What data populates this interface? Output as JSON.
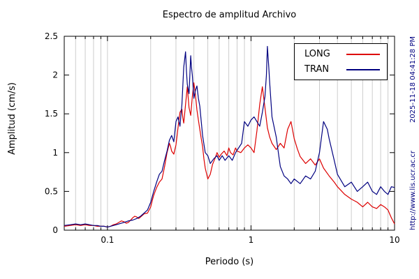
{
  "chart_data": {
    "type": "line",
    "title": "Espectro de amplitud Archivo",
    "xlabel": "Periodo (s)",
    "ylabel": "Amplitud (cm/s)",
    "xscale": "log",
    "xlim": [
      0.05,
      10
    ],
    "ylim": [
      0,
      2.5
    ],
    "x_major_ticks": [
      0.1,
      1,
      10
    ],
    "x_tick_labels": [
      "0.1",
      "1",
      "10"
    ],
    "y_ticks": [
      0,
      0.5,
      1,
      1.5,
      2,
      2.5
    ],
    "y_tick_labels": [
      "0",
      "0.5",
      "1",
      "1.5",
      "2",
      "2.5"
    ],
    "grid": true,
    "legend_position": "top-right",
    "grid_color": "#cccccc",
    "axis_color": "#000000",
    "series": [
      {
        "name": "LONG",
        "color": "#dd0000",
        "points": [
          [
            0.05,
            0.05
          ],
          [
            0.055,
            0.06
          ],
          [
            0.06,
            0.07
          ],
          [
            0.065,
            0.06
          ],
          [
            0.07,
            0.07
          ],
          [
            0.075,
            0.06
          ],
          [
            0.08,
            0.06
          ],
          [
            0.085,
            0.05
          ],
          [
            0.09,
            0.05
          ],
          [
            0.095,
            0.05
          ],
          [
            0.1,
            0.04
          ],
          [
            0.105,
            0.05
          ],
          [
            0.11,
            0.07
          ],
          [
            0.115,
            0.08
          ],
          [
            0.12,
            0.1
          ],
          [
            0.125,
            0.12
          ],
          [
            0.13,
            0.11
          ],
          [
            0.135,
            0.09
          ],
          [
            0.14,
            0.1
          ],
          [
            0.145,
            0.13
          ],
          [
            0.15,
            0.16
          ],
          [
            0.155,
            0.18
          ],
          [
            0.16,
            0.17
          ],
          [
            0.165,
            0.15
          ],
          [
            0.17,
            0.17
          ],
          [
            0.175,
            0.19
          ],
          [
            0.18,
            0.21
          ],
          [
            0.19,
            0.22
          ],
          [
            0.2,
            0.3
          ],
          [
            0.205,
            0.38
          ],
          [
            0.21,
            0.45
          ],
          [
            0.215,
            0.5
          ],
          [
            0.22,
            0.55
          ],
          [
            0.23,
            0.62
          ],
          [
            0.24,
            0.66
          ],
          [
            0.25,
            0.82
          ],
          [
            0.26,
            1.0
          ],
          [
            0.27,
            1.12
          ],
          [
            0.275,
            1.08
          ],
          [
            0.28,
            1.02
          ],
          [
            0.29,
            0.98
          ],
          [
            0.3,
            1.1
          ],
          [
            0.31,
            1.32
          ],
          [
            0.32,
            1.52
          ],
          [
            0.33,
            1.56
          ],
          [
            0.335,
            1.45
          ],
          [
            0.34,
            1.38
          ],
          [
            0.35,
            1.62
          ],
          [
            0.36,
            1.85
          ],
          [
            0.37,
            1.58
          ],
          [
            0.38,
            1.48
          ],
          [
            0.39,
            1.72
          ],
          [
            0.4,
            1.9
          ],
          [
            0.41,
            1.75
          ],
          [
            0.42,
            1.55
          ],
          [
            0.43,
            1.42
          ],
          [
            0.44,
            1.3
          ],
          [
            0.45,
            1.18
          ],
          [
            0.46,
            1.08
          ],
          [
            0.47,
            0.92
          ],
          [
            0.48,
            0.8
          ],
          [
            0.5,
            0.66
          ],
          [
            0.52,
            0.72
          ],
          [
            0.54,
            0.85
          ],
          [
            0.56,
            0.92
          ],
          [
            0.58,
            1.0
          ],
          [
            0.6,
            0.94
          ],
          [
            0.62,
            0.98
          ],
          [
            0.65,
            1.02
          ],
          [
            0.68,
            0.96
          ],
          [
            0.7,
            1.06
          ],
          [
            0.72,
            1.0
          ],
          [
            0.75,
            0.97
          ],
          [
            0.78,
            1.06
          ],
          [
            0.8,
            1.02
          ],
          [
            0.85,
            1.0
          ],
          [
            0.9,
            1.06
          ],
          [
            0.95,
            1.1
          ],
          [
            1.0,
            1.06
          ],
          [
            1.05,
            1.0
          ],
          [
            1.1,
            1.28
          ],
          [
            1.15,
            1.62
          ],
          [
            1.2,
            1.85
          ],
          [
            1.25,
            1.58
          ],
          [
            1.3,
            1.32
          ],
          [
            1.35,
            1.2
          ],
          [
            1.4,
            1.12
          ],
          [
            1.5,
            1.04
          ],
          [
            1.6,
            1.12
          ],
          [
            1.7,
            1.06
          ],
          [
            1.8,
            1.3
          ],
          [
            1.9,
            1.4
          ],
          [
            2.0,
            1.18
          ],
          [
            2.1,
            1.05
          ],
          [
            2.2,
            0.95
          ],
          [
            2.4,
            0.86
          ],
          [
            2.6,
            0.92
          ],
          [
            2.8,
            0.84
          ],
          [
            3.0,
            0.92
          ],
          [
            3.2,
            0.8
          ],
          [
            3.5,
            0.7
          ],
          [
            3.8,
            0.62
          ],
          [
            4.0,
            0.56
          ],
          [
            4.5,
            0.46
          ],
          [
            5.0,
            0.4
          ],
          [
            5.5,
            0.36
          ],
          [
            6.0,
            0.3
          ],
          [
            6.5,
            0.36
          ],
          [
            7.0,
            0.3
          ],
          [
            7.5,
            0.28
          ],
          [
            8.0,
            0.33
          ],
          [
            8.5,
            0.3
          ],
          [
            9.0,
            0.26
          ],
          [
            9.5,
            0.16
          ],
          [
            10,
            0.08
          ]
        ]
      },
      {
        "name": "TRAN",
        "color": "#000080",
        "points": [
          [
            0.05,
            0.06
          ],
          [
            0.055,
            0.07
          ],
          [
            0.06,
            0.08
          ],
          [
            0.065,
            0.07
          ],
          [
            0.07,
            0.08
          ],
          [
            0.075,
            0.07
          ],
          [
            0.08,
            0.06
          ],
          [
            0.085,
            0.06
          ],
          [
            0.09,
            0.05
          ],
          [
            0.095,
            0.05
          ],
          [
            0.1,
            0.04
          ],
          [
            0.105,
            0.05
          ],
          [
            0.11,
            0.06
          ],
          [
            0.115,
            0.07
          ],
          [
            0.12,
            0.08
          ],
          [
            0.13,
            0.1
          ],
          [
            0.14,
            0.12
          ],
          [
            0.15,
            0.13
          ],
          [
            0.16,
            0.15
          ],
          [
            0.17,
            0.18
          ],
          [
            0.18,
            0.22
          ],
          [
            0.19,
            0.26
          ],
          [
            0.2,
            0.36
          ],
          [
            0.21,
            0.5
          ],
          [
            0.22,
            0.62
          ],
          [
            0.23,
            0.72
          ],
          [
            0.24,
            0.76
          ],
          [
            0.25,
            0.9
          ],
          [
            0.26,
            1.02
          ],
          [
            0.27,
            1.16
          ],
          [
            0.28,
            1.22
          ],
          [
            0.29,
            1.14
          ],
          [
            0.3,
            1.4
          ],
          [
            0.31,
            1.46
          ],
          [
            0.32,
            1.34
          ],
          [
            0.33,
            1.62
          ],
          [
            0.34,
            2.1
          ],
          [
            0.35,
            2.3
          ],
          [
            0.355,
            2.05
          ],
          [
            0.36,
            1.88
          ],
          [
            0.37,
            1.76
          ],
          [
            0.38,
            2.25
          ],
          [
            0.385,
            2.1
          ],
          [
            0.39,
            2.0
          ],
          [
            0.4,
            1.7
          ],
          [
            0.41,
            1.8
          ],
          [
            0.42,
            1.86
          ],
          [
            0.43,
            1.7
          ],
          [
            0.44,
            1.6
          ],
          [
            0.45,
            1.4
          ],
          [
            0.46,
            1.22
          ],
          [
            0.48,
            1.0
          ],
          [
            0.5,
            0.96
          ],
          [
            0.52,
            0.86
          ],
          [
            0.55,
            0.92
          ],
          [
            0.58,
            0.96
          ],
          [
            0.6,
            0.9
          ],
          [
            0.63,
            0.96
          ],
          [
            0.66,
            0.9
          ],
          [
            0.7,
            0.96
          ],
          [
            0.74,
            0.9
          ],
          [
            0.78,
            1.0
          ],
          [
            0.82,
            1.06
          ],
          [
            0.86,
            1.12
          ],
          [
            0.9,
            1.4
          ],
          [
            0.95,
            1.34
          ],
          [
            1.0,
            1.42
          ],
          [
            1.05,
            1.46
          ],
          [
            1.1,
            1.4
          ],
          [
            1.15,
            1.34
          ],
          [
            1.2,
            1.52
          ],
          [
            1.25,
            1.72
          ],
          [
            1.28,
            2.0
          ],
          [
            1.3,
            2.37
          ],
          [
            1.33,
            2.1
          ],
          [
            1.35,
            1.9
          ],
          [
            1.4,
            1.46
          ],
          [
            1.5,
            1.2
          ],
          [
            1.55,
            1.0
          ],
          [
            1.6,
            0.82
          ],
          [
            1.7,
            0.7
          ],
          [
            1.8,
            0.66
          ],
          [
            1.9,
            0.6
          ],
          [
            2.0,
            0.66
          ],
          [
            2.2,
            0.6
          ],
          [
            2.4,
            0.7
          ],
          [
            2.6,
            0.66
          ],
          [
            2.8,
            0.76
          ],
          [
            3.0,
            1.0
          ],
          [
            3.1,
            1.2
          ],
          [
            3.2,
            1.4
          ],
          [
            3.4,
            1.3
          ],
          [
            3.5,
            1.18
          ],
          [
            3.8,
            0.9
          ],
          [
            4.0,
            0.72
          ],
          [
            4.5,
            0.56
          ],
          [
            5.0,
            0.62
          ],
          [
            5.5,
            0.5
          ],
          [
            6.0,
            0.56
          ],
          [
            6.5,
            0.62
          ],
          [
            7.0,
            0.5
          ],
          [
            7.5,
            0.46
          ],
          [
            8.0,
            0.56
          ],
          [
            8.5,
            0.5
          ],
          [
            9.0,
            0.46
          ],
          [
            9.5,
            0.56
          ],
          [
            10,
            0.55
          ]
        ]
      }
    ]
  },
  "annotations": {
    "timestamp": "2025-11-18 04:41:28 PM",
    "url": "http://www.lis.ucr.ac.cr",
    "side_text_color": "#000080"
  }
}
